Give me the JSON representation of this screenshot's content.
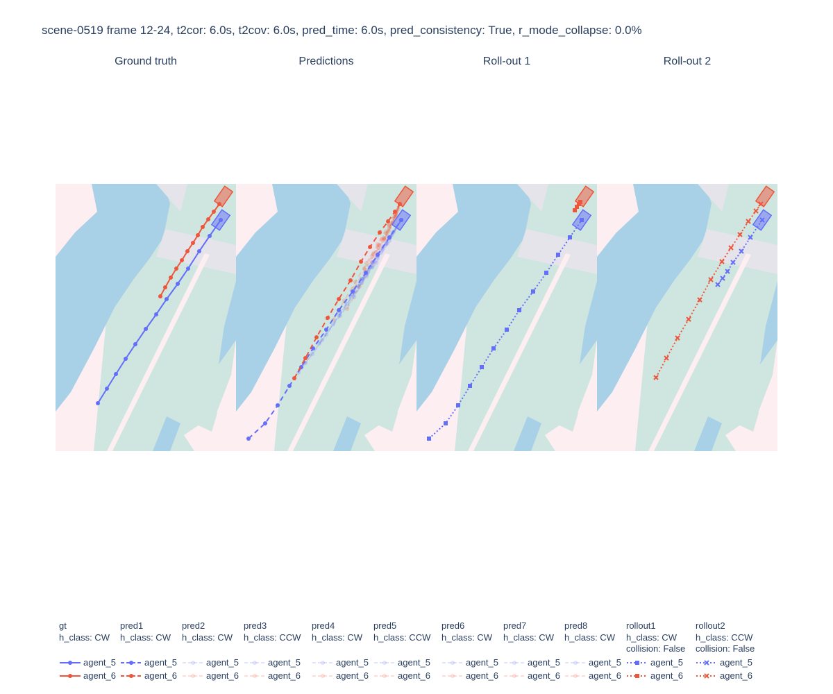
{
  "title": "scene-0519 frame 12-24, t2cor: 6.0s, t2cov: 6.0s, pred_time: 6.0s, pred_consistency: True, r_mode_collapse: 0.0%",
  "subplot_titles": [
    "Ground truth",
    "Predictions",
    "Roll-out 1",
    "Roll-out 2"
  ],
  "colors": {
    "agent_5": "#636efa",
    "agent_6": "#ef553b",
    "background_pink": "#fdeef2",
    "road_green": "#cfe5df",
    "water_blue": "#a8d1e7",
    "crossing_gray": "#e4e4ea"
  },
  "legend": [
    {
      "group": "gt",
      "h_class": "h_class: CW",
      "extra": "",
      "dash": "solid",
      "symbol": "circle",
      "opacity": 1,
      "items": [
        "agent_5",
        "agent_6"
      ]
    },
    {
      "group": "pred1",
      "h_class": "h_class: CW",
      "extra": "",
      "dash": "dash",
      "symbol": "circle",
      "opacity": 1,
      "items": [
        "agent_5",
        "agent_6"
      ]
    },
    {
      "group": "pred2",
      "h_class": "h_class: CW",
      "extra": "",
      "dash": "dash",
      "symbol": "circle",
      "opacity": 0.2,
      "items": [
        "agent_5",
        "agent_6"
      ]
    },
    {
      "group": "pred3",
      "h_class": "h_class: CCW",
      "extra": "",
      "dash": "dash",
      "symbol": "circle",
      "opacity": 0.2,
      "items": [
        "agent_5",
        "agent_6"
      ]
    },
    {
      "group": "pred4",
      "h_class": "h_class: CW",
      "extra": "",
      "dash": "dash",
      "symbol": "circle",
      "opacity": 0.2,
      "items": [
        "agent_5",
        "agent_6"
      ]
    },
    {
      "group": "pred5",
      "h_class": "h_class: CCW",
      "extra": "",
      "dash": "dash",
      "symbol": "circle",
      "opacity": 0.2,
      "items": [
        "agent_5",
        "agent_6"
      ]
    },
    {
      "group": "pred6",
      "h_class": "h_class: CW",
      "extra": "",
      "dash": "dash",
      "symbol": "circle",
      "opacity": 0.2,
      "items": [
        "agent_5",
        "agent_6"
      ]
    },
    {
      "group": "pred7",
      "h_class": "h_class: CW",
      "extra": "",
      "dash": "dash",
      "symbol": "circle",
      "opacity": 0.2,
      "items": [
        "agent_5",
        "agent_6"
      ]
    },
    {
      "group": "pred8",
      "h_class": "h_class: CW",
      "extra": "",
      "dash": "dash",
      "symbol": "circle",
      "opacity": 0.2,
      "items": [
        "agent_5",
        "agent_6"
      ]
    },
    {
      "group": "rollout1",
      "h_class": "h_class: CW",
      "extra": "collision: False",
      "dash": "dot",
      "symbol": "square",
      "opacity": 1,
      "items": [
        "agent_5",
        "agent_6"
      ]
    },
    {
      "group": "rollout2",
      "h_class": "h_class: CCW",
      "extra": "collision: False",
      "dash": "dot",
      "symbol": "x",
      "opacity": 1,
      "items": [
        "agent_5",
        "agent_6"
      ]
    }
  ],
  "chart_data": {
    "type": "scatter",
    "units": "panel map coordinates (x: 0-260 left to right, y: 0-385 top to bottom)",
    "xlim": [
      0,
      260
    ],
    "ylim": [
      0,
      385
    ],
    "axes_visible": false,
    "grid": false,
    "legend_placement": "bottom",
    "subplots": [
      {
        "title": "Ground truth",
        "series": [
          {
            "name": "agent_5",
            "group": "gt",
            "dash": "solid",
            "symbol": "circle",
            "opacity": 1,
            "x": [
              61,
              74,
              87,
              101,
              115,
              130,
              145,
              160,
              176,
              191,
              207,
              222,
              238
            ],
            "y": [
              316,
              295,
              274,
              252,
              231,
              209,
              188,
              166,
              144,
              122,
              97,
              75,
              52
            ]
          },
          {
            "name": "agent_6",
            "group": "gt",
            "dash": "solid",
            "symbol": "circle",
            "opacity": 1,
            "x": [
              151,
              158,
              166,
              174,
              182,
              190,
              198,
              205,
              212,
              220,
              228,
              236
            ],
            "y": [
              162,
              149,
              135,
              122,
              110,
              97,
              85,
              74,
              62,
              51,
              40,
              29
            ]
          }
        ],
        "boxes": [
          {
            "agent": "agent_5",
            "x": 238,
            "y": 52,
            "angle": -55
          },
          {
            "agent": "agent_6",
            "x": 242,
            "y": 18,
            "angle": -55
          }
        ]
      },
      {
        "title": "Predictions",
        "series": [
          {
            "name": "agent_5",
            "group": "pred1",
            "dash": "dash",
            "symbol": "circle",
            "opacity": 1,
            "x": [
              18,
              42,
              60,
              77,
              94,
              111,
              130,
              148,
              168,
              187,
              204,
              221,
              238
            ],
            "y": [
              367,
              345,
              319,
              291,
              264,
              237,
              210,
              182,
              155,
              128,
              102,
              77,
              52
            ]
          },
          {
            "name": "agent_6",
            "group": "pred1",
            "dash": "dash",
            "symbol": "circle",
            "opacity": 1,
            "x": [
              84,
              100,
              116,
              132,
              148,
              165,
              180,
              193,
              207,
              219,
              229,
              236
            ],
            "y": [
              280,
              251,
              221,
              193,
              166,
              139,
              112,
              91,
              70,
              54,
              40,
              29
            ]
          },
          {
            "name": "agent_5",
            "group": "pred2",
            "dash": "dash",
            "symbol": "circle",
            "opacity": 0.2,
            "x": [
              90,
              110,
              130,
              150,
              170,
              188,
              204,
              221,
              238
            ],
            "y": [
              272,
              245,
              217,
              190,
              163,
              133,
              104,
              78,
              52
            ]
          },
          {
            "name": "agent_6",
            "group": "pred2",
            "dash": "dash",
            "symbol": "circle",
            "opacity": 0.2,
            "x": [
              140,
              156,
              172,
              188,
              204,
              220,
              236
            ],
            "y": [
              196,
              168,
              141,
              114,
              87,
              58,
              29
            ]
          },
          {
            "name": "agent_5",
            "group": "pred3",
            "dash": "dash",
            "symbol": "circle",
            "opacity": 0.2,
            "x": [
              100,
              124,
              148,
              172,
              196,
              218,
              238
            ],
            "y": [
              258,
              225,
              190,
              155,
              120,
              86,
              52
            ]
          },
          {
            "name": "agent_6",
            "group": "pred3",
            "dash": "dash",
            "symbol": "circle",
            "opacity": 0.2,
            "x": [
              160,
              178,
              196,
              214,
              229,
              236
            ],
            "y": [
              180,
              148,
              113,
              80,
              48,
              29
            ]
          },
          {
            "name": "agent_5",
            "group": "pred4",
            "dash": "dash",
            "symbol": "circle",
            "opacity": 0.2,
            "x": [
              120,
              140,
              160,
              181,
              202,
              221,
              238
            ],
            "y": [
              230,
              202,
              173,
              143,
              114,
              82,
              52
            ]
          },
          {
            "name": "agent_6",
            "group": "pred4",
            "dash": "dash",
            "symbol": "circle",
            "opacity": 0.2,
            "x": [
              170,
              186,
              202,
              218,
              230,
              236
            ],
            "y": [
              150,
              124,
              98,
              72,
              46,
              29
            ]
          },
          {
            "name": "agent_5",
            "group": "pred5",
            "dash": "dash",
            "symbol": "circle",
            "opacity": 0.2,
            "x": [
              150,
              165,
              181,
              196,
              212,
              226,
              238
            ],
            "y": [
              186,
              162,
              137,
              113,
              90,
              70,
              52
            ]
          },
          {
            "name": "agent_6",
            "group": "pred5",
            "dash": "dash",
            "symbol": "circle",
            "opacity": 0.2,
            "x": [
              185,
              198,
              210,
              221,
              230,
              236
            ],
            "y": [
              122,
              101,
              80,
              61,
              43,
              29
            ]
          },
          {
            "name": "agent_5",
            "group": "pred6",
            "dash": "dash",
            "symbol": "circle",
            "opacity": 0.2,
            "x": [
              168,
              180,
              193,
              206,
              220,
              238
            ],
            "y": [
              160,
              140,
              120,
              100,
              78,
              52
            ]
          },
          {
            "name": "agent_6",
            "group": "pred6",
            "dash": "dash",
            "symbol": "circle",
            "opacity": 0.2,
            "x": [
              196,
              206,
              216,
              225,
              231,
              236
            ],
            "y": [
              104,
              88,
              71,
              55,
              41,
              29
            ]
          },
          {
            "name": "agent_5",
            "group": "pred7",
            "dash": "dash",
            "symbol": "circle",
            "opacity": 0.2,
            "x": [
              176,
              188,
              200,
              212,
              225,
              238
            ],
            "y": [
              148,
              130,
              112,
              93,
              73,
              52
            ]
          },
          {
            "name": "agent_6",
            "group": "pred7",
            "dash": "dash",
            "symbol": "circle",
            "opacity": 0.2,
            "x": [
              205,
              213,
              221,
              228,
              232,
              236
            ],
            "y": [
              92,
              78,
              63,
              50,
              39,
              29
            ]
          },
          {
            "name": "agent_5",
            "group": "pred8",
            "dash": "dash",
            "symbol": "circle",
            "opacity": 0.2,
            "x": [
              182,
              193,
              204,
              216,
              227,
              238
            ],
            "y": [
              137,
              120,
              103,
              86,
              69,
              52
            ]
          },
          {
            "name": "agent_6",
            "group": "pred8",
            "dash": "dash",
            "symbol": "circle",
            "opacity": 0.2,
            "x": [
              214,
              220,
              226,
              231,
              234,
              236
            ],
            "y": [
              80,
              68,
              56,
              45,
              36,
              29
            ]
          }
        ],
        "boxes": [
          {
            "agent": "agent_5",
            "x": 238,
            "y": 52,
            "angle": -55
          },
          {
            "agent": "agent_6",
            "x": 242,
            "y": 18,
            "angle": -55
          }
        ]
      },
      {
        "title": "Roll-out 1",
        "series": [
          {
            "name": "agent_5",
            "group": "rollout1",
            "dash": "dot",
            "symbol": "square",
            "opacity": 1,
            "x": [
              18,
              42,
              60,
              77,
              94,
              111,
              130,
              148,
              168,
              187,
              204,
              221,
              238
            ],
            "y": [
              367,
              345,
              319,
              291,
              264,
              237,
              210,
              182,
              155,
              128,
              102,
              77,
              52
            ]
          },
          {
            "name": "agent_6",
            "group": "rollout1",
            "dash": "dot",
            "symbol": "square",
            "opacity": 1,
            "x": [
              228,
              231,
              234,
              236
            ],
            "y": [
              38,
              33,
              29,
              26
            ]
          }
        ],
        "boxes": [
          {
            "agent": "agent_5",
            "x": 238,
            "y": 52,
            "angle": -55
          },
          {
            "agent": "agent_6",
            "x": 242,
            "y": 18,
            "angle": -55
          }
        ]
      },
      {
        "title": "Roll-out 2",
        "series": [
          {
            "name": "agent_5",
            "group": "rollout2",
            "dash": "dot",
            "symbol": "x",
            "opacity": 1,
            "x": [
              174,
              181,
              188,
              196,
              208,
              221,
              238
            ],
            "y": [
              145,
              136,
              126,
              113,
              97,
              77,
              52
            ]
          },
          {
            "name": "agent_6",
            "group": "rollout2",
            "dash": "dot",
            "symbol": "x",
            "opacity": 1,
            "x": [
              85,
              100,
              116,
              132,
              148,
              164,
              180,
              193,
              206,
              218,
              229,
              236
            ],
            "y": [
              279,
              251,
              222,
              195,
              167,
              138,
              112,
              92,
              73,
              54,
              39,
              29
            ]
          }
        ],
        "boxes": [
          {
            "agent": "agent_5",
            "x": 238,
            "y": 52,
            "angle": -55
          },
          {
            "agent": "agent_6",
            "x": 242,
            "y": 18,
            "angle": -55
          }
        ]
      }
    ]
  }
}
